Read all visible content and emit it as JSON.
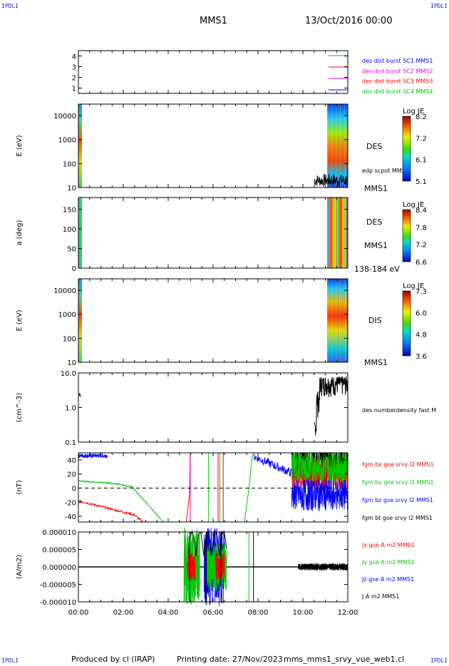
{
  "corners": {
    "tl": "IPDLI",
    "tr": "IPDLI",
    "bl": "IPDLI",
    "br": "IPDLI"
  },
  "header": {
    "spacecraft": "MMS1",
    "date": "13/Oct/2016 00:00"
  },
  "footer": {
    "produced_by": "Produced by cl (IRAP)",
    "printing_date": "Printing date: 27/Nov/2023",
    "file": "mms_mms1_srvy_vue_web1.cl"
  },
  "colors": {
    "blue": "#0000ff",
    "red": "#ff0000",
    "green": "#00c800",
    "magenta": "#e000e0",
    "black": "#000000"
  },
  "chart_data": [
    {
      "type": "line",
      "id": "availability",
      "ylim": [
        0.5,
        4.5
      ],
      "y_ticks": [
        "1",
        "2",
        "3",
        "4"
      ],
      "legend": [
        {
          "name": "des dist burst SC1 MMS1",
          "color": "#0000ff"
        },
        {
          "name": "des dist burst SC2 MMS2",
          "color": "#e000e0"
        },
        {
          "name": "des dist burst SC3 MMS3",
          "color": "#ff0000"
        },
        {
          "name": "des dist burst SC4 MMS4",
          "color": "#00c800"
        }
      ]
    },
    {
      "type": "heatmap",
      "id": "des-energy",
      "ylabel": "E (eV)",
      "yscale": "log",
      "ylim": [
        10,
        30000
      ],
      "y_ticks": [
        "10",
        "100",
        "1000",
        "10000"
      ],
      "labels": [
        "DES",
        "edp scpot MMS1",
        "MMS1"
      ],
      "colorbar": {
        "title": "Log JE",
        "ticks": [
          "8.2",
          "7.2",
          "6.1",
          "5.1"
        ]
      }
    },
    {
      "type": "heatmap",
      "id": "des-pitch",
      "ylabel": "a (deg)",
      "ylim": [
        0,
        180
      ],
      "y_ticks": [
        "0",
        "50",
        "100",
        "150"
      ],
      "labels": [
        "DES",
        "MMS1",
        "138-184 eV"
      ],
      "colorbar": {
        "title": "Log JE",
        "ticks": [
          "8.4",
          "7.8",
          "7.2",
          "6.6"
        ]
      }
    },
    {
      "type": "heatmap",
      "id": "dis-energy",
      "ylabel": "E (eV)",
      "yscale": "log",
      "ylim": [
        10,
        30000
      ],
      "y_ticks": [
        "10",
        "100",
        "1000",
        "10000"
      ],
      "labels": [
        "DIS",
        "MMS1"
      ],
      "colorbar": {
        "title": "Log JE",
        "ticks": [
          "7.3",
          "6.0",
          "4.8",
          "3.6"
        ]
      }
    },
    {
      "type": "line",
      "id": "density",
      "ylabel": "(cm^-3)",
      "yscale": "log",
      "ylim": [
        0.1,
        10
      ],
      "y_ticks": [
        "0.1",
        "1.0",
        "10.0"
      ],
      "labels": [
        "des numberdensity fast M"
      ]
    },
    {
      "type": "line",
      "id": "magnetic-field",
      "ylabel": "(nT)",
      "ylim": [
        -48,
        50
      ],
      "y_ticks": [
        "-40",
        "-20",
        "0",
        "20",
        "40"
      ],
      "legend": [
        {
          "name": "fgm bx gse srvy l2 MMS1",
          "color": "#ff0000"
        },
        {
          "name": "fgm by gse srvy l2 MMS1",
          "color": "#00c800"
        },
        {
          "name": "fgm bz gse srvy l2 MMS1",
          "color": "#0000ff"
        },
        {
          "name": "fgm bt gse srvy l2 MMS1",
          "color": "#000000"
        }
      ]
    },
    {
      "type": "line",
      "id": "current-density",
      "ylabel": "(A/m2)",
      "ylim": [
        -1e-05,
        1e-05
      ],
      "y_ticks": [
        "-0.000010",
        "-0.000005",
        "0.000000",
        "0.000005",
        "0.000010"
      ],
      "x_ticks": [
        "00:00",
        "02:00",
        "04:00",
        "06:00",
        "08:00",
        "10:00",
        "12:00"
      ],
      "xlim": [
        0,
        12
      ],
      "legend": [
        {
          "name": "Jx gse A m2 MMS1",
          "color": "#ff0000"
        },
        {
          "name": "Jy gse A m2 MMS1",
          "color": "#00c800"
        },
        {
          "name": "Jz gse A m2 MMS1",
          "color": "#0000ff"
        },
        {
          "name": "J A m2 MMS1",
          "color": "#000000"
        }
      ]
    }
  ]
}
